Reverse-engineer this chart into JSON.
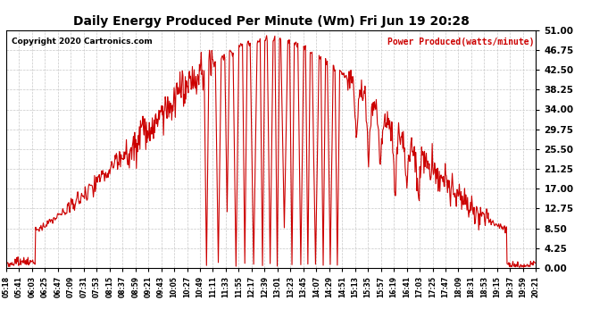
{
  "title": "Daily Energy Produced Per Minute (Wm) Fri Jun 19 20:28",
  "copyright": "Copyright 2020 Cartronics.com",
  "legend_label": "Power Produced(watts/minute)",
  "line_color": "#CC0000",
  "bg_color": "#ffffff",
  "grid_color": "#c8c8c8",
  "ylim": [
    0,
    51
  ],
  "yticks": [
    0.0,
    4.25,
    8.5,
    12.75,
    17.0,
    21.25,
    25.5,
    29.75,
    34.0,
    38.25,
    42.5,
    46.75,
    51.0
  ],
  "xtick_labels": [
    "05:18",
    "05:41",
    "06:03",
    "06:25",
    "06:47",
    "07:09",
    "07:31",
    "07:53",
    "08:15",
    "08:37",
    "08:59",
    "09:21",
    "09:43",
    "10:05",
    "10:27",
    "10:49",
    "11:11",
    "11:33",
    "11:55",
    "12:17",
    "12:39",
    "13:01",
    "13:23",
    "13:45",
    "14:07",
    "14:29",
    "14:51",
    "15:13",
    "15:35",
    "15:57",
    "16:19",
    "16:41",
    "17:03",
    "17:25",
    "17:47",
    "18:09",
    "18:31",
    "18:53",
    "19:15",
    "19:37",
    "19:59",
    "20:21"
  ]
}
